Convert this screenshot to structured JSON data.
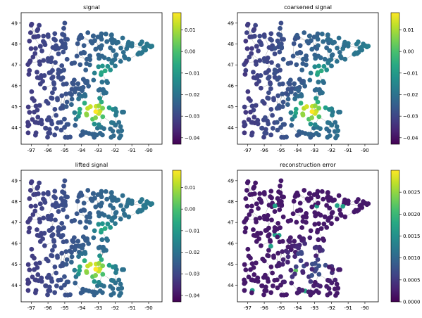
{
  "chart_data": [
    {
      "type": "scatter",
      "title": "signal",
      "x_ticks": [
        "-97",
        "-96",
        "-95",
        "-94",
        "-93",
        "-92",
        "-91",
        "-90"
      ],
      "y_ticks": [
        "44",
        "45",
        "46",
        "47",
        "48",
        "49"
      ],
      "xlim": [
        -97.6,
        -89.2
      ],
      "ylim": [
        43.2,
        49.5
      ],
      "colormap": "viridis",
      "colorbar": {
        "range": [
          -0.043,
          0.018
        ],
        "ticks": [
          "0.01",
          "0.00",
          "-0.01",
          "-0.02",
          "-0.03",
          "-0.04"
        ],
        "tick_values": [
          0.01,
          0.0,
          -0.01,
          -0.02,
          -0.03,
          -0.04
        ]
      },
      "field": "signal"
    },
    {
      "type": "scatter",
      "title": "coarsened signal",
      "x_ticks": [
        "-97",
        "-96",
        "-95",
        "-94",
        "-93",
        "-92",
        "-91",
        "-90"
      ],
      "y_ticks": [
        "44",
        "45",
        "46",
        "47",
        "48",
        "49"
      ],
      "xlim": [
        -97.6,
        -89.2
      ],
      "ylim": [
        43.2,
        49.5
      ],
      "colormap": "viridis",
      "colorbar": {
        "range": [
          -0.043,
          0.018
        ],
        "ticks": [
          "0.01",
          "0.00",
          "-0.01",
          "-0.02",
          "-0.03",
          "-0.04"
        ],
        "tick_values": [
          0.01,
          0.0,
          -0.01,
          -0.02,
          -0.03,
          -0.04
        ]
      },
      "field": "signal"
    },
    {
      "type": "scatter",
      "title": "lifted signal",
      "x_ticks": [
        "-97",
        "-96",
        "-95",
        "-94",
        "-93",
        "-92",
        "-91",
        "-90"
      ],
      "y_ticks": [
        "44",
        "45",
        "46",
        "47",
        "48",
        "49"
      ],
      "xlim": [
        -97.6,
        -89.2
      ],
      "ylim": [
        43.2,
        49.5
      ],
      "colormap": "viridis",
      "colorbar": {
        "range": [
          -0.043,
          0.018
        ],
        "ticks": [
          "0.01",
          "0.00",
          "-0.01",
          "-0.02",
          "-0.03",
          "-0.04"
        ],
        "tick_values": [
          0.01,
          0.0,
          -0.01,
          -0.02,
          -0.03,
          -0.04
        ]
      },
      "field": "signal"
    },
    {
      "type": "scatter",
      "title": "reconstruction error",
      "x_ticks": [
        "-97",
        "-96",
        "-95",
        "-94",
        "-93",
        "-92",
        "-91",
        "-90"
      ],
      "y_ticks": [
        "44",
        "45",
        "46",
        "47",
        "48",
        "49"
      ],
      "xlim": [
        -97.6,
        -89.2
      ],
      "ylim": [
        43.2,
        49.5
      ],
      "colormap": "viridis",
      "colorbar": {
        "range": [
          0,
          0.003
        ],
        "ticks": [
          "0.0025",
          "0.0020",
          "0.0015",
          "0.0010",
          "0.0005",
          "0.0000"
        ],
        "tick_values": [
          0.0025,
          0.002,
          0.0015,
          0.001,
          0.0005,
          0.0
        ]
      },
      "field": "error"
    }
  ]
}
